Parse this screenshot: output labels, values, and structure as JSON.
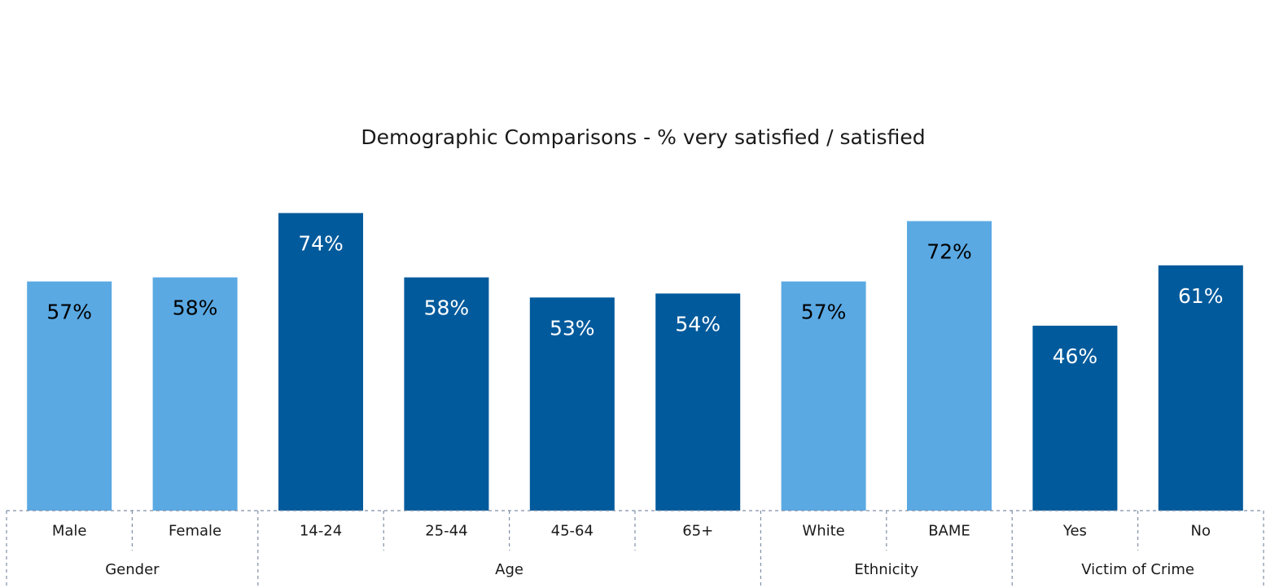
{
  "chart_data": {
    "type": "bar",
    "title": "Demographic Comparisons  - % very satisfied / satisfied",
    "xlabel": "",
    "ylabel": "",
    "ylim": [
      0,
      80
    ],
    "grid": false,
    "legend": "none",
    "value_suffix": "%",
    "colors": {
      "light": "#5aa9e3",
      "dark": "#005a9c",
      "label_on_light": "#000000",
      "label_on_dark": "#ffffff"
    },
    "categories": [
      "Male",
      "Female",
      "14-24",
      "25-44",
      "45-64",
      "65+",
      "White",
      "BAME",
      "Yes",
      "No"
    ],
    "values": [
      57,
      58,
      74,
      58,
      53,
      54,
      57,
      72,
      46,
      61
    ],
    "bar_shades": [
      "light",
      "light",
      "dark",
      "dark",
      "dark",
      "dark",
      "light",
      "light",
      "dark",
      "dark"
    ],
    "groups": [
      {
        "name": "Gender",
        "categories": [
          "Male",
          "Female"
        ]
      },
      {
        "name": "Age",
        "categories": [
          "14-24",
          "25-44",
          "45-64",
          "65+"
        ]
      },
      {
        "name": "Ethnicity",
        "categories": [
          "White",
          "BAME"
        ]
      },
      {
        "name": "Victim of Crime",
        "categories": [
          "Yes",
          "No"
        ]
      }
    ]
  }
}
